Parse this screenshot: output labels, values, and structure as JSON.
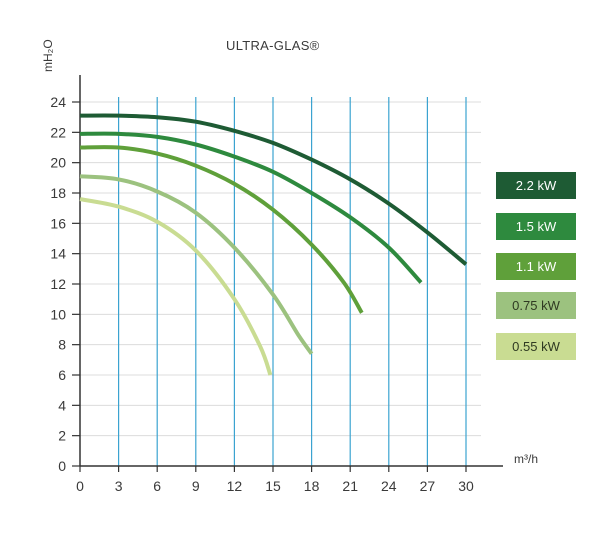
{
  "chart_data": {
    "type": "line",
    "title": "ULTRA-GLAS®",
    "xlabel": "m³/h",
    "ylabel": "mH₂O",
    "xlim": [
      0,
      31
    ],
    "ylim": [
      0,
      25
    ],
    "x_ticks": [
      0,
      3,
      6,
      9,
      12,
      15,
      18,
      21,
      24,
      27,
      30
    ],
    "y_ticks": [
      0,
      2,
      4,
      6,
      8,
      10,
      12,
      14,
      16,
      18,
      20,
      22,
      24
    ],
    "grid": "vertical",
    "legend_position": "right",
    "series": [
      {
        "name": "2.2 kW",
        "color": "#1e5b34",
        "text_color": "#ffffff",
        "points": [
          [
            0,
            23.1
          ],
          [
            3,
            23.1
          ],
          [
            6,
            23.0
          ],
          [
            9,
            22.7
          ],
          [
            12,
            22.1
          ],
          [
            15,
            21.3
          ],
          [
            18,
            20.2
          ],
          [
            21,
            18.9
          ],
          [
            24,
            17.3
          ],
          [
            27,
            15.4
          ],
          [
            30,
            13.3
          ]
        ]
      },
      {
        "name": "1.5 kW",
        "color": "#2e8a3e",
        "text_color": "#ffffff",
        "points": [
          [
            0,
            21.9
          ],
          [
            3,
            21.9
          ],
          [
            6,
            21.7
          ],
          [
            9,
            21.2
          ],
          [
            12,
            20.4
          ],
          [
            15,
            19.4
          ],
          [
            18,
            18.0
          ],
          [
            21,
            16.4
          ],
          [
            24,
            14.4
          ],
          [
            26.5,
            12.1
          ]
        ]
      },
      {
        "name": "1.1 kW",
        "color": "#5fa03a",
        "text_color": "#ffffff",
        "points": [
          [
            0,
            21.0
          ],
          [
            3,
            21.0
          ],
          [
            6,
            20.6
          ],
          [
            9,
            19.8
          ],
          [
            12,
            18.6
          ],
          [
            15,
            16.9
          ],
          [
            18,
            14.6
          ],
          [
            20.5,
            12.1
          ],
          [
            21.9,
            10.1
          ]
        ]
      },
      {
        "name": "0.75 kW",
        "color": "#9cc27f",
        "text_color": "#2f3a22",
        "points": [
          [
            0,
            19.1
          ],
          [
            3,
            18.9
          ],
          [
            6,
            18.1
          ],
          [
            9,
            16.7
          ],
          [
            12,
            14.4
          ],
          [
            15,
            11.3
          ],
          [
            17,
            8.6
          ],
          [
            18,
            7.4
          ]
        ]
      },
      {
        "name": "0.55 kW",
        "color": "#c9dc92",
        "text_color": "#2f3a22",
        "points": [
          [
            0,
            17.6
          ],
          [
            3,
            17.1
          ],
          [
            6,
            16.1
          ],
          [
            9,
            14.2
          ],
          [
            12,
            11.0
          ],
          [
            14,
            7.9
          ],
          [
            14.8,
            6.0
          ]
        ]
      }
    ]
  }
}
